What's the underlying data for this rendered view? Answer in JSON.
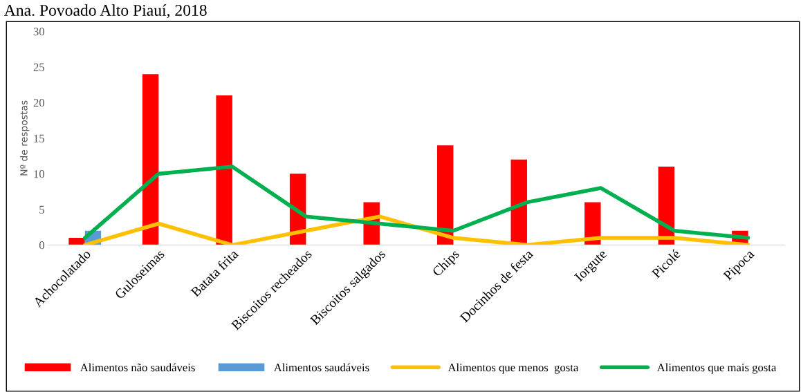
{
  "chart_data": {
    "type": "bar",
    "title": "Ana. Povoado Alto Piauí, 2018",
    "ylabel": "Nº de respostas",
    "categories": [
      "Achocolatado",
      "Guloseimas",
      "Batata frita",
      "Biscoitos recheados",
      "Biscoitos salgados",
      "Chips",
      "Docinhos de festa",
      "Iorgute",
      "Picolé",
      "Pipoca"
    ],
    "series": [
      {
        "name": "Alimentos não saudáveis",
        "color": "#ff0000",
        "values": [
          1,
          24,
          21,
          10,
          6,
          14,
          12,
          6,
          11,
          2
        ]
      },
      {
        "name": "Alimentos saudáveis",
        "color": "#5b9bd5",
        "values": [
          2,
          null,
          null,
          null,
          null,
          null,
          null,
          null,
          null,
          null
        ]
      },
      {
        "name": "Alimentos que menos  gosta",
        "type": "line",
        "color": "#ffc000",
        "values": [
          0,
          3,
          0,
          2,
          4,
          1,
          0,
          1,
          1,
          0
        ]
      },
      {
        "name": "Alimentos que mais gosta",
        "type": "line",
        "color": "#00b050",
        "values": [
          1,
          10,
          11,
          4,
          3,
          2,
          6,
          8,
          2,
          1
        ]
      }
    ],
    "ylim": [
      0,
      30
    ],
    "yticks": [
      0,
      5,
      10,
      15,
      20,
      25,
      30
    ],
    "grid": false,
    "legend": "bottom"
  }
}
